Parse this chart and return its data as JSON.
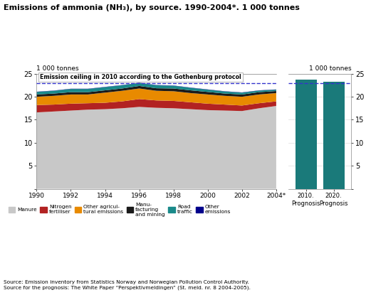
{
  "title": "Emissions of ammonia (NH₃), by source. 1990-2004*. 1 000 tonnes",
  "ylabel_left": "1 000 tonnes",
  "ylabel_right": "1 000 tonnes",
  "emission_ceiling_label": "Emission ceiling in 2010 according to the Gothenburg protocol",
  "emission_ceiling_value": 23.0,
  "years": [
    1990,
    1991,
    1992,
    1993,
    1994,
    1995,
    1996,
    1997,
    1998,
    1999,
    2000,
    2001,
    2002,
    2003,
    2004
  ],
  "year_labels": [
    "1990",
    "1992",
    "1994",
    "1996",
    "1998",
    "2000",
    "2002",
    "2004*"
  ],
  "manure": [
    16.6,
    16.8,
    17.0,
    17.2,
    17.3,
    17.5,
    17.8,
    17.6,
    17.5,
    17.3,
    17.1,
    17.0,
    16.9,
    17.5,
    18.0
  ],
  "nitrogen": [
    1.6,
    1.5,
    1.5,
    1.4,
    1.4,
    1.5,
    1.7,
    1.6,
    1.6,
    1.5,
    1.4,
    1.3,
    1.2,
    1.1,
    1.0
  ],
  "other_agri": [
    1.8,
    1.9,
    2.0,
    1.9,
    2.2,
    2.3,
    2.3,
    2.1,
    2.1,
    2.0,
    2.0,
    1.9,
    1.9,
    1.9,
    1.8
  ],
  "manufacturing": [
    0.5,
    0.5,
    0.5,
    0.5,
    0.5,
    0.5,
    0.55,
    0.55,
    0.6,
    0.6,
    0.55,
    0.5,
    0.5,
    0.5,
    0.45
  ],
  "road_traffic": [
    0.55,
    0.6,
    0.7,
    0.7,
    0.7,
    0.7,
    0.65,
    0.65,
    0.6,
    0.55,
    0.5,
    0.45,
    0.4,
    0.35,
    0.3
  ],
  "other_em": [
    0.05,
    0.05,
    0.05,
    0.05,
    0.05,
    0.05,
    0.05,
    0.05,
    0.05,
    0.05,
    0.05,
    0.05,
    0.05,
    0.05,
    0.05
  ],
  "bar_2010": 23.8,
  "bar_2020": 23.2,
  "bar_color": "#1a7a7a",
  "color_manure": "#c8c8c8",
  "color_nitrogen": "#b22222",
  "color_other_agri": "#e88a00",
  "color_manufacturing": "#1a1a1a",
  "color_road_traffic": "#1a8a8a",
  "color_other": "#00008b",
  "dashed_color": "#3333cc",
  "ylim": [
    0,
    25
  ],
  "yticks": [
    0,
    5,
    10,
    15,
    20,
    25
  ],
  "source_text": "Source: Emission inventory from Statistics Norway and Norwegian Pollution Control Authority.\nSource for the prognosis: The White Paper “Perspektivmeldingen” (St. meld. nr. 8 2004-2005).",
  "legend_items": [
    {
      "label": "Manure",
      "color": "#c8c8c8"
    },
    {
      "label": "Nitrogen\nfertiliser",
      "color": "#b22222"
    },
    {
      "label": "Other agricul-\ntural emissions",
      "color": "#e88a00"
    },
    {
      "label": "Manu-\nfacturing\nand mining",
      "color": "#1a1a1a"
    },
    {
      "label": "Road\ntraffic",
      "color": "#1a8a8a"
    },
    {
      "label": "Other\nemissions",
      "color": "#00008b"
    }
  ]
}
